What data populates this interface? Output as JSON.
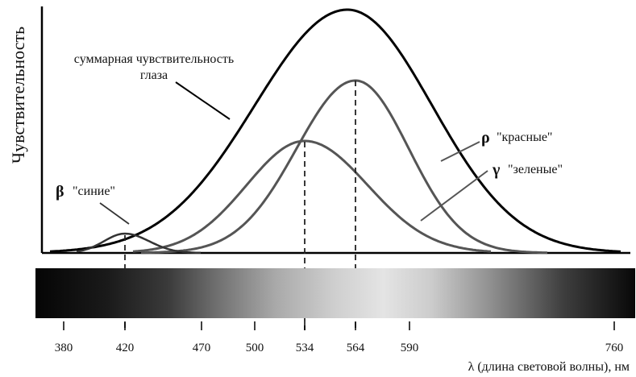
{
  "y_axis_label": "Чувствительность",
  "x_axis_label": "λ (длина световой волны), нм",
  "tick_labels": [
    "380",
    "420",
    "470",
    "500",
    "534",
    "564",
    "590",
    "760"
  ],
  "annotations": {
    "total_line1": "суммарная чувствительность",
    "total_line2": "глаза",
    "rho_symbol": "ρ",
    "rho_text": "\"красные\"",
    "gamma_symbol": "γ",
    "gamma_text": "\"зеленые\"",
    "beta_symbol": "β",
    "beta_text": "\"синие\""
  },
  "curves": [
    {
      "id": "total",
      "label": "суммарная чувствительность глаза",
      "peak_nm": 560,
      "relative_height": 1.0
    },
    {
      "id": "rho",
      "label": "\"красные\"",
      "peak_nm": 564,
      "relative_height": 0.71
    },
    {
      "id": "gamma",
      "label": "\"зеленые\"",
      "peak_nm": 534,
      "relative_height": 0.46
    },
    {
      "id": "beta",
      "label": "\"синие\"",
      "peak_nm": 420,
      "relative_height": 0.08
    }
  ],
  "colors": {
    "axis": "#000000",
    "total": "#000000",
    "cones": "#555555",
    "guides": "#222222"
  }
}
